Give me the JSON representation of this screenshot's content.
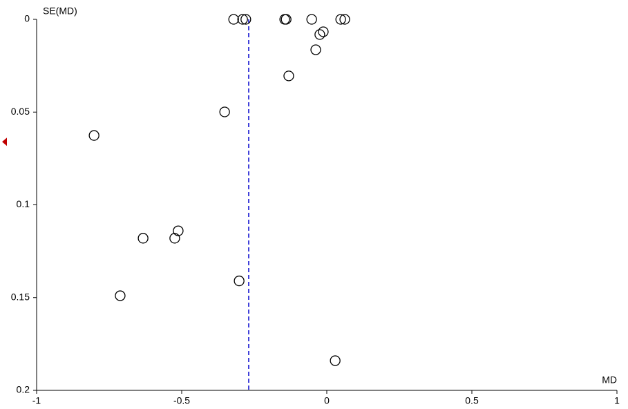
{
  "chart_data": {
    "type": "scatter",
    "x_label": "MD",
    "y_label": "SE(MD)",
    "xlim": [
      -1,
      1
    ],
    "xticks": [
      -1,
      -0.5,
      0,
      0.5,
      1
    ],
    "ylim": [
      0,
      0.2
    ],
    "yticks": [
      0,
      0.05,
      0.1,
      0.15,
      0.2
    ],
    "y_inverted": true,
    "reference_x": -0.269,
    "reference_color": "#0000cc",
    "marker_y": 0.066,
    "marker_color": "#c00000",
    "point_color": "#000000",
    "x": [
      -0.321,
      -0.29,
      -0.279,
      -0.145,
      -0.14,
      -0.052,
      0.048,
      0.062,
      -0.012,
      -0.024,
      -0.038,
      -0.131,
      -0.352,
      -0.802,
      -0.512,
      -0.524,
      -0.633,
      -0.302,
      -0.712,
      0.029
    ],
    "values": [
      0,
      0,
      0,
      0,
      0,
      0,
      0,
      0,
      0.0067,
      0.0082,
      0.0164,
      0.0305,
      0.0499,
      0.0626,
      0.114,
      0.118,
      0.118,
      0.141,
      0.149,
      0.184
    ]
  }
}
